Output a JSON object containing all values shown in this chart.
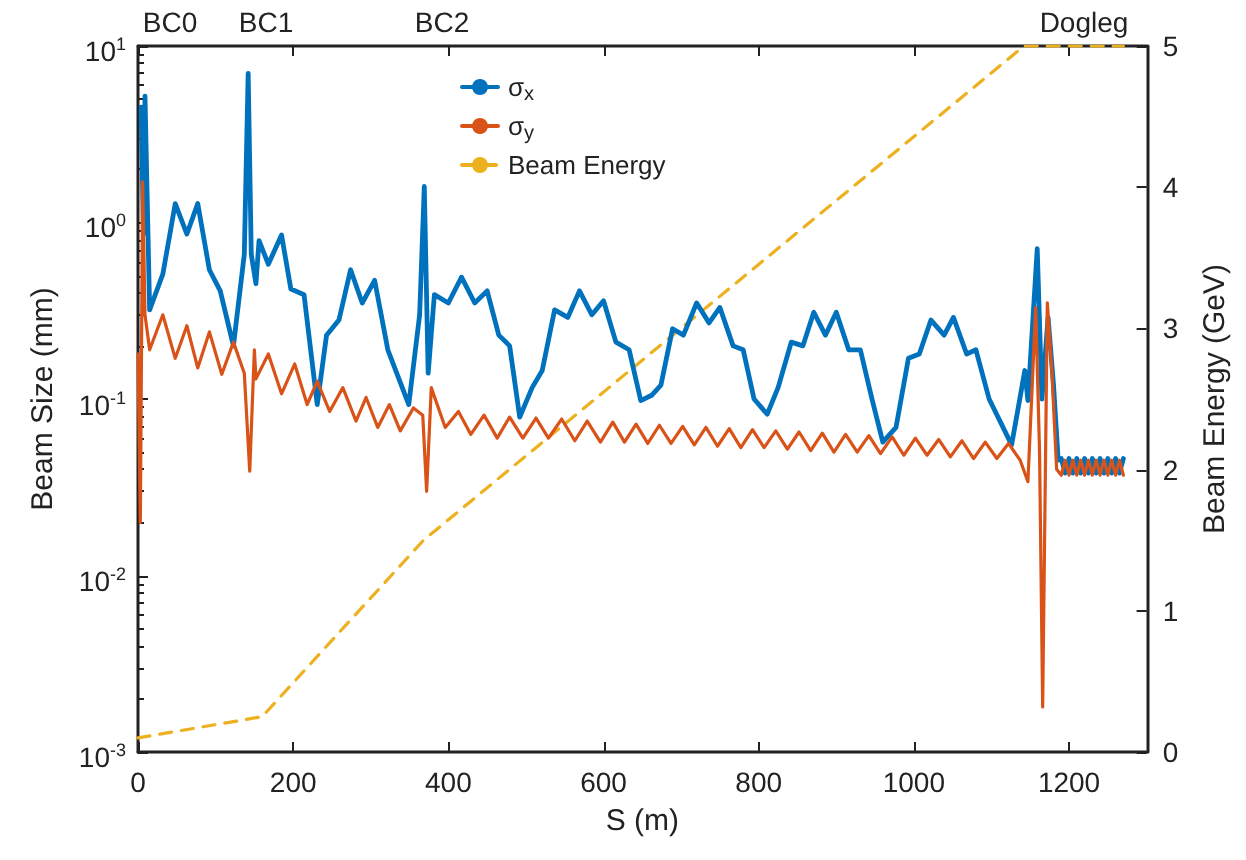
{
  "chart_data": {
    "type": "line",
    "xlabel": "S (m)",
    "ylabel": "Beam Size (mm)",
    "y2label": "Beam Energy (GeV)",
    "xlim": [
      0,
      1300
    ],
    "xticks": [
      0,
      200,
      400,
      600,
      800,
      1000,
      1200
    ],
    "ylim": [
      0.001,
      10
    ],
    "yticks": [
      {
        "value": 0.001,
        "label": "10$^{-3}$"
      },
      {
        "value": 0.01,
        "label": "10$^{-2}$"
      },
      {
        "value": 0.1,
        "label": "10$^{-1}$"
      },
      {
        "value": 1,
        "label": "10$^{0}$"
      },
      {
        "value": 10,
        "label": "10$^{1}$"
      }
    ],
    "y2lim": [
      0,
      5
    ],
    "y2ticks": [
      0,
      1,
      2,
      3,
      4,
      5
    ],
    "log": "y",
    "grid": false,
    "legend": "top",
    "marker": "none",
    "annotations": [
      "BC0",
      "BC1",
      "BC2",
      "Dogleg"
    ],
    "series": [
      {
        "name": "σ$_{x}$",
        "color": "#0072bd",
        "x": [
          4,
          7,
          9,
          15,
          32,
          48,
          63,
          77,
          92,
          106,
          123,
          137,
          142,
          146,
          152,
          156,
          168,
          185,
          197,
          214,
          231,
          243,
          259,
          274,
          289,
          305,
          322,
          349,
          363,
          369,
          374,
          382,
          400,
          417,
          434,
          450,
          465,
          479,
          492,
          508,
          521,
          537,
          554,
          569,
          585,
          600,
          616,
          633,
          648,
          662,
          674,
          689,
          703,
          720,
          736,
          750,
          767,
          780,
          794,
          811,
          825,
          842,
          857,
          871,
          886,
          900,
          916,
          931,
          946,
          960,
          977,
          993,
          1007,
          1022,
          1039,
          1051,
          1068,
          1080,
          1097,
          1126,
          1143,
          1147,
          1159,
          1165,
          1173,
          1180,
          1186,
          1190,
          1195,
          1200,
          1205,
          1210,
          1215,
          1220,
          1225,
          1230,
          1235,
          1240,
          1245,
          1250,
          1255,
          1260,
          1265,
          1270
        ],
        "values": [
          4.5,
          0.86,
          5.2,
          0.32,
          0.51,
          1.28,
          0.86,
          1.28,
          0.54,
          0.41,
          0.2,
          0.66,
          7,
          0.66,
          0.45,
          0.79,
          0.58,
          0.85,
          0.42,
          0.39,
          0.093,
          0.23,
          0.28,
          0.54,
          0.35,
          0.47,
          0.19,
          0.093,
          0.3,
          1.6,
          0.14,
          0.39,
          0.35,
          0.49,
          0.35,
          0.41,
          0.23,
          0.2,
          0.079,
          0.116,
          0.145,
          0.32,
          0.29,
          0.41,
          0.3,
          0.36,
          0.21,
          0.19,
          0.098,
          0.105,
          0.12,
          0.25,
          0.23,
          0.35,
          0.27,
          0.33,
          0.2,
          0.19,
          0.1,
          0.082,
          0.116,
          0.21,
          0.2,
          0.31,
          0.23,
          0.31,
          0.19,
          0.19,
          0.1,
          0.057,
          0.069,
          0.17,
          0.18,
          0.28,
          0.23,
          0.29,
          0.18,
          0.19,
          0.1,
          0.055,
          0.145,
          0.098,
          0.71,
          0.1,
          0.29,
          0.12,
          0.045,
          0.046,
          0.038,
          0.046,
          0.038,
          0.046,
          0.038,
          0.046,
          0.038,
          0.046,
          0.038,
          0.046,
          0.038,
          0.046,
          0.038,
          0.046,
          0.038,
          0.046
        ]
      },
      {
        "name": "σ$_{y}$",
        "color": "#d95319",
        "x": [
          0,
          3,
          6,
          9,
          15,
          32,
          48,
          63,
          77,
          92,
          108,
          123,
          137,
          144,
          150,
          152,
          168,
          185,
          202,
          218,
          231,
          247,
          264,
          281,
          294,
          309,
          324,
          338,
          355,
          367,
          372,
          378,
          396,
          413,
          429,
          446,
          463,
          479,
          496,
          513,
          529,
          546,
          563,
          579,
          596,
          612,
          627,
          642,
          657,
          672,
          687,
          702,
          717,
          732,
          747,
          762,
          777,
          792,
          807,
          822,
          837,
          852,
          867,
          882,
          897,
          912,
          927,
          942,
          957,
          972,
          987,
          1002,
          1017,
          1032,
          1047,
          1062,
          1077,
          1092,
          1107,
          1122,
          1137,
          1147,
          1157,
          1162,
          1166,
          1172,
          1178,
          1184,
          1190,
          1195,
          1200,
          1205,
          1210,
          1215,
          1220,
          1225,
          1230,
          1235,
          1240,
          1245,
          1250,
          1255,
          1260,
          1265,
          1270
        ],
        "values": [
          0.18,
          0.02,
          1.7,
          0.3,
          0.19,
          0.3,
          0.17,
          0.26,
          0.15,
          0.24,
          0.138,
          0.21,
          0.14,
          0.039,
          0.19,
          0.13,
          0.18,
          0.107,
          0.158,
          0.093,
          0.126,
          0.085,
          0.116,
          0.075,
          0.102,
          0.069,
          0.093,
          0.066,
          0.089,
          0.081,
          0.03,
          0.116,
          0.069,
          0.085,
          0.063,
          0.081,
          0.06,
          0.079,
          0.06,
          0.078,
          0.06,
          0.077,
          0.058,
          0.075,
          0.057,
          0.074,
          0.057,
          0.072,
          0.056,
          0.071,
          0.056,
          0.07,
          0.055,
          0.069,
          0.054,
          0.068,
          0.053,
          0.067,
          0.053,
          0.066,
          0.052,
          0.065,
          0.051,
          0.064,
          0.05,
          0.063,
          0.05,
          0.062,
          0.049,
          0.061,
          0.048,
          0.06,
          0.048,
          0.059,
          0.047,
          0.058,
          0.046,
          0.057,
          0.046,
          0.056,
          0.045,
          0.034,
          0.33,
          0.05,
          0.0018,
          0.35,
          0.14,
          0.04,
          0.037,
          0.045,
          0.037,
          0.045,
          0.037,
          0.045,
          0.037,
          0.045,
          0.037,
          0.045,
          0.037,
          0.045,
          0.037,
          0.045,
          0.037,
          0.045,
          0.037
        ]
      },
      {
        "name": "Beam Energy",
        "color": "#edb120",
        "axis": "y2",
        "line_style": "dashed",
        "x": [
          0,
          160,
          368,
          1142,
          1270
        ],
        "values": [
          0.1,
          0.25,
          1.5,
          5,
          5
        ]
      }
    ]
  }
}
